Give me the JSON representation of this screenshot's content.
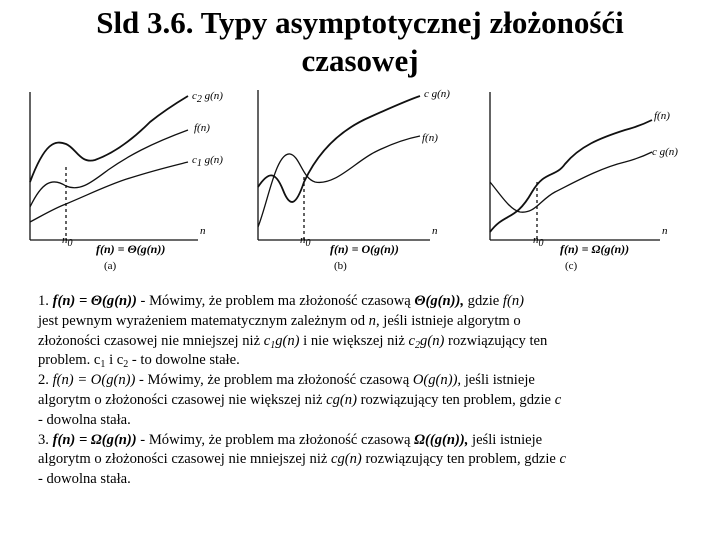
{
  "title": {
    "line1": "Sld 3.6. Typy asymptotycznej złożonośći",
    "line2": "czasowej"
  },
  "figure": {
    "panel_a": {
      "curve_upper": "c",
      "curve_upper_sub": "2",
      "curve_upper_fn": " g(n)",
      "curve_f": "f(n)",
      "curve_lower": "c",
      "curve_lower_sub": "1",
      "curve_lower_fn": " g(n)",
      "axis_n": "n",
      "n0": "n",
      "n0_sub": "0",
      "formula": "f(n) = Θ(g(n))",
      "label": "(a)"
    },
    "panel_b": {
      "curve_cg": "c g(n)",
      "curve_f": "f(n)",
      "axis_n": "n",
      "n0": "n",
      "n0_sub": "0",
      "formula": "f(n) = O(g(n))",
      "label": "(b)"
    },
    "panel_c": {
      "curve_f": "f(n)",
      "curve_cg": "c g(n)",
      "axis_n": "n",
      "n0": "n",
      "n0_sub": "0",
      "formula": "f(n) = Ω(g(n))",
      "label": "(c)"
    }
  },
  "definitions": {
    "theta": {
      "num": "1. ",
      "formula": "f(n) = Θ(g(n))",
      "t1": " - Mówimy, że problem ma złożoność czasową ",
      "sym": "Θ(g(n)),",
      "t2": " gdzie ",
      "fn": "f(n)",
      "line2a": "jest pewnym wyrażeniem matematycznym zależnym od ",
      "n": "n",
      "line2b": ", jeśli istnieje algorytm o",
      "line3a": "złożoności czasowej nie mniejszej niż  ",
      "c1g": "c",
      "c1g_sub": "1",
      "c1g_fn": "g(n)",
      "line3b": "  i nie większej niż ",
      "c2g": "c",
      "c2g_sub": "2",
      "c2g_fn": "g(n)",
      "line3c": "  rozwiązujący ten",
      "line4a": "problem. c",
      "line4_sub1": "1",
      "line4b": "   i  c",
      "line4_sub2": "2",
      "line4c": "  - to dowolne stałe."
    },
    "big_o": {
      "num": "2.  ",
      "formula": "f(n) = O(g(n))",
      "t1": " -  Mówimy, że problem ma złożoność czasową ",
      "sym": "O(g(n)),",
      "t2": " jeśli istnieje",
      "line2a": "algorytm o złożoności czasowej nie większej niż ",
      "cg": "cg(n)",
      "line2b": "  rozwiązujący ten problem, gdzie ",
      "c": "c",
      "line3": "- dowolna stała."
    },
    "omega": {
      "num": "3.  ",
      "formula": "f(n) = Ω(g(n))",
      "t1": " - Mówimy, że problem ma złożoność czasową ",
      "sym": "Ω((g(n)),",
      "t2": " jeśli istnieje",
      "line2a": "algorytm o złożoności czasowej nie mniejszej niż ",
      "cg": "cg(n)",
      "line2b": "  rozwiązujący ten problem, gdzie ",
      "c": "c",
      "line3": "- dowolna stała."
    }
  }
}
